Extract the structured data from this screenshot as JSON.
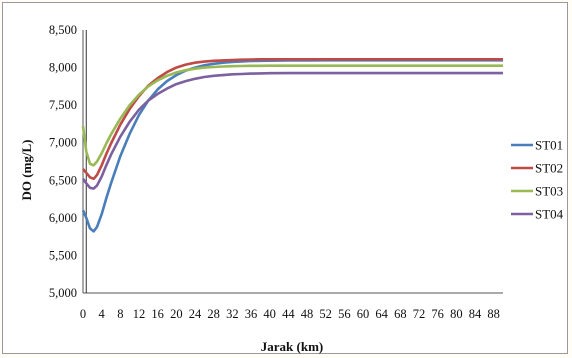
{
  "chart_data": {
    "type": "line",
    "title": "",
    "xlabel": "Jarak (km)",
    "ylabel": "DO (mg/L)",
    "xlim": [
      0,
      90
    ],
    "ylim": [
      5000,
      8500
    ],
    "x_ticks": [
      0,
      4,
      8,
      12,
      16,
      20,
      24,
      28,
      32,
      36,
      40,
      44,
      48,
      52,
      56,
      60,
      64,
      68,
      72,
      76,
      80,
      84,
      88
    ],
    "y_ticks": [
      5000,
      5500,
      6000,
      6500,
      7000,
      7500,
      8000,
      8500
    ],
    "y_tick_labels": [
      "5,000",
      "5,500",
      "6,000",
      "6,500",
      "7,000",
      "7,500",
      "8,000",
      "8,500"
    ],
    "grid": false,
    "legend_position": "right",
    "vertical_marker_x": 0.7,
    "x": [
      0,
      0.7,
      1.5,
      2.3,
      3,
      4,
      5,
      6,
      8,
      10,
      12,
      14,
      16,
      18,
      20,
      22,
      24,
      26,
      28,
      30,
      32,
      34,
      36,
      38,
      40,
      44,
      48,
      52,
      56,
      60,
      64,
      68,
      72,
      76,
      80,
      84,
      88,
      90
    ],
    "series": [
      {
        "name": "ST01",
        "color": "#4a7ebb",
        "values": [
          6100,
          6000,
          5860,
          5820,
          5880,
          6050,
          6260,
          6460,
          6820,
          7120,
          7370,
          7560,
          7710,
          7820,
          7900,
          7960,
          8000,
          8030,
          8050,
          8065,
          8075,
          8082,
          8087,
          8090,
          8092,
          8095,
          8096,
          8097,
          8097,
          8097,
          8097,
          8097,
          8097,
          8097,
          8097,
          8097,
          8097,
          8097
        ]
      },
      {
        "name": "ST02",
        "color": "#be4b48",
        "values": [
          6650,
          6600,
          6540,
          6520,
          6570,
          6700,
          6850,
          6990,
          7240,
          7450,
          7620,
          7760,
          7860,
          7940,
          8000,
          8040,
          8065,
          8080,
          8090,
          8095,
          8100,
          8105,
          8108,
          8110,
          8110,
          8110,
          8110,
          8110,
          8110,
          8110,
          8110,
          8110,
          8110,
          8110,
          8110,
          8110,
          8110,
          8110
        ]
      },
      {
        "name": "ST03",
        "color": "#98b954",
        "values": [
          7220,
          6880,
          6720,
          6700,
          6750,
          6860,
          6990,
          7110,
          7320,
          7500,
          7640,
          7750,
          7830,
          7890,
          7935,
          7965,
          7985,
          8000,
          8008,
          8014,
          8018,
          8021,
          8023,
          8024,
          8025,
          8025,
          8025,
          8025,
          8025,
          8025,
          8025,
          8025,
          8025,
          8025,
          8025,
          8025,
          8025,
          8025
        ]
      },
      {
        "name": "ST04",
        "color": "#7d60a0",
        "values": [
          6520,
          6460,
          6400,
          6390,
          6430,
          6550,
          6700,
          6840,
          7080,
          7280,
          7440,
          7560,
          7650,
          7720,
          7780,
          7820,
          7850,
          7875,
          7890,
          7900,
          7910,
          7915,
          7920,
          7923,
          7925,
          7926,
          7927,
          7927,
          7927,
          7927,
          7927,
          7927,
          7927,
          7927,
          7927,
          7927,
          7927,
          7927
        ]
      }
    ]
  }
}
